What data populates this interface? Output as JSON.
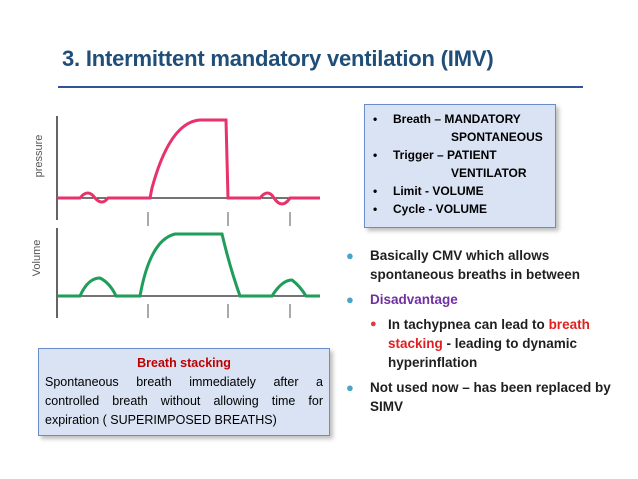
{
  "title": "3. Intermittent mandatory ventilation (IMV)",
  "graph": {
    "pressure_label": "pressure",
    "volume_label": "Volume"
  },
  "info_box": {
    "rows": [
      {
        "marker": "•",
        "text": "Breath – MANDATORY"
      },
      {
        "marker": "",
        "text": "SPONTANEOUS"
      },
      {
        "marker": "•",
        "text": "Trigger – PATIENT"
      },
      {
        "marker": "",
        "text": "VENTILATOR"
      },
      {
        "marker": "•",
        "text": "Limit - VOLUME"
      },
      {
        "marker": "•",
        "text": "Cycle - VOLUME"
      }
    ]
  },
  "bullets": {
    "b1": "Basically CMV which allows spontaneous breaths in between",
    "b2": "Disadvantage",
    "b2_sub_pre": "In tachypnea can lead to",
    "b2_sub_red": "breath stacking",
    "b2_sub_post": "- leading to dynamic hyperinflation",
    "b3": "Not used now – has been replaced by SIMV"
  },
  "stacking_box": {
    "title": "Breath stacking",
    "text": "Spontaneous breath immediately after a controlled breath without allowing time for expiration ( SUPERIMPOSED BREATHS)"
  },
  "colors": {
    "title": "#1f4e79",
    "pressure_wave": "#e8326b",
    "volume_wave": "#1e9e5a",
    "box_fill": "#dae3f3"
  }
}
